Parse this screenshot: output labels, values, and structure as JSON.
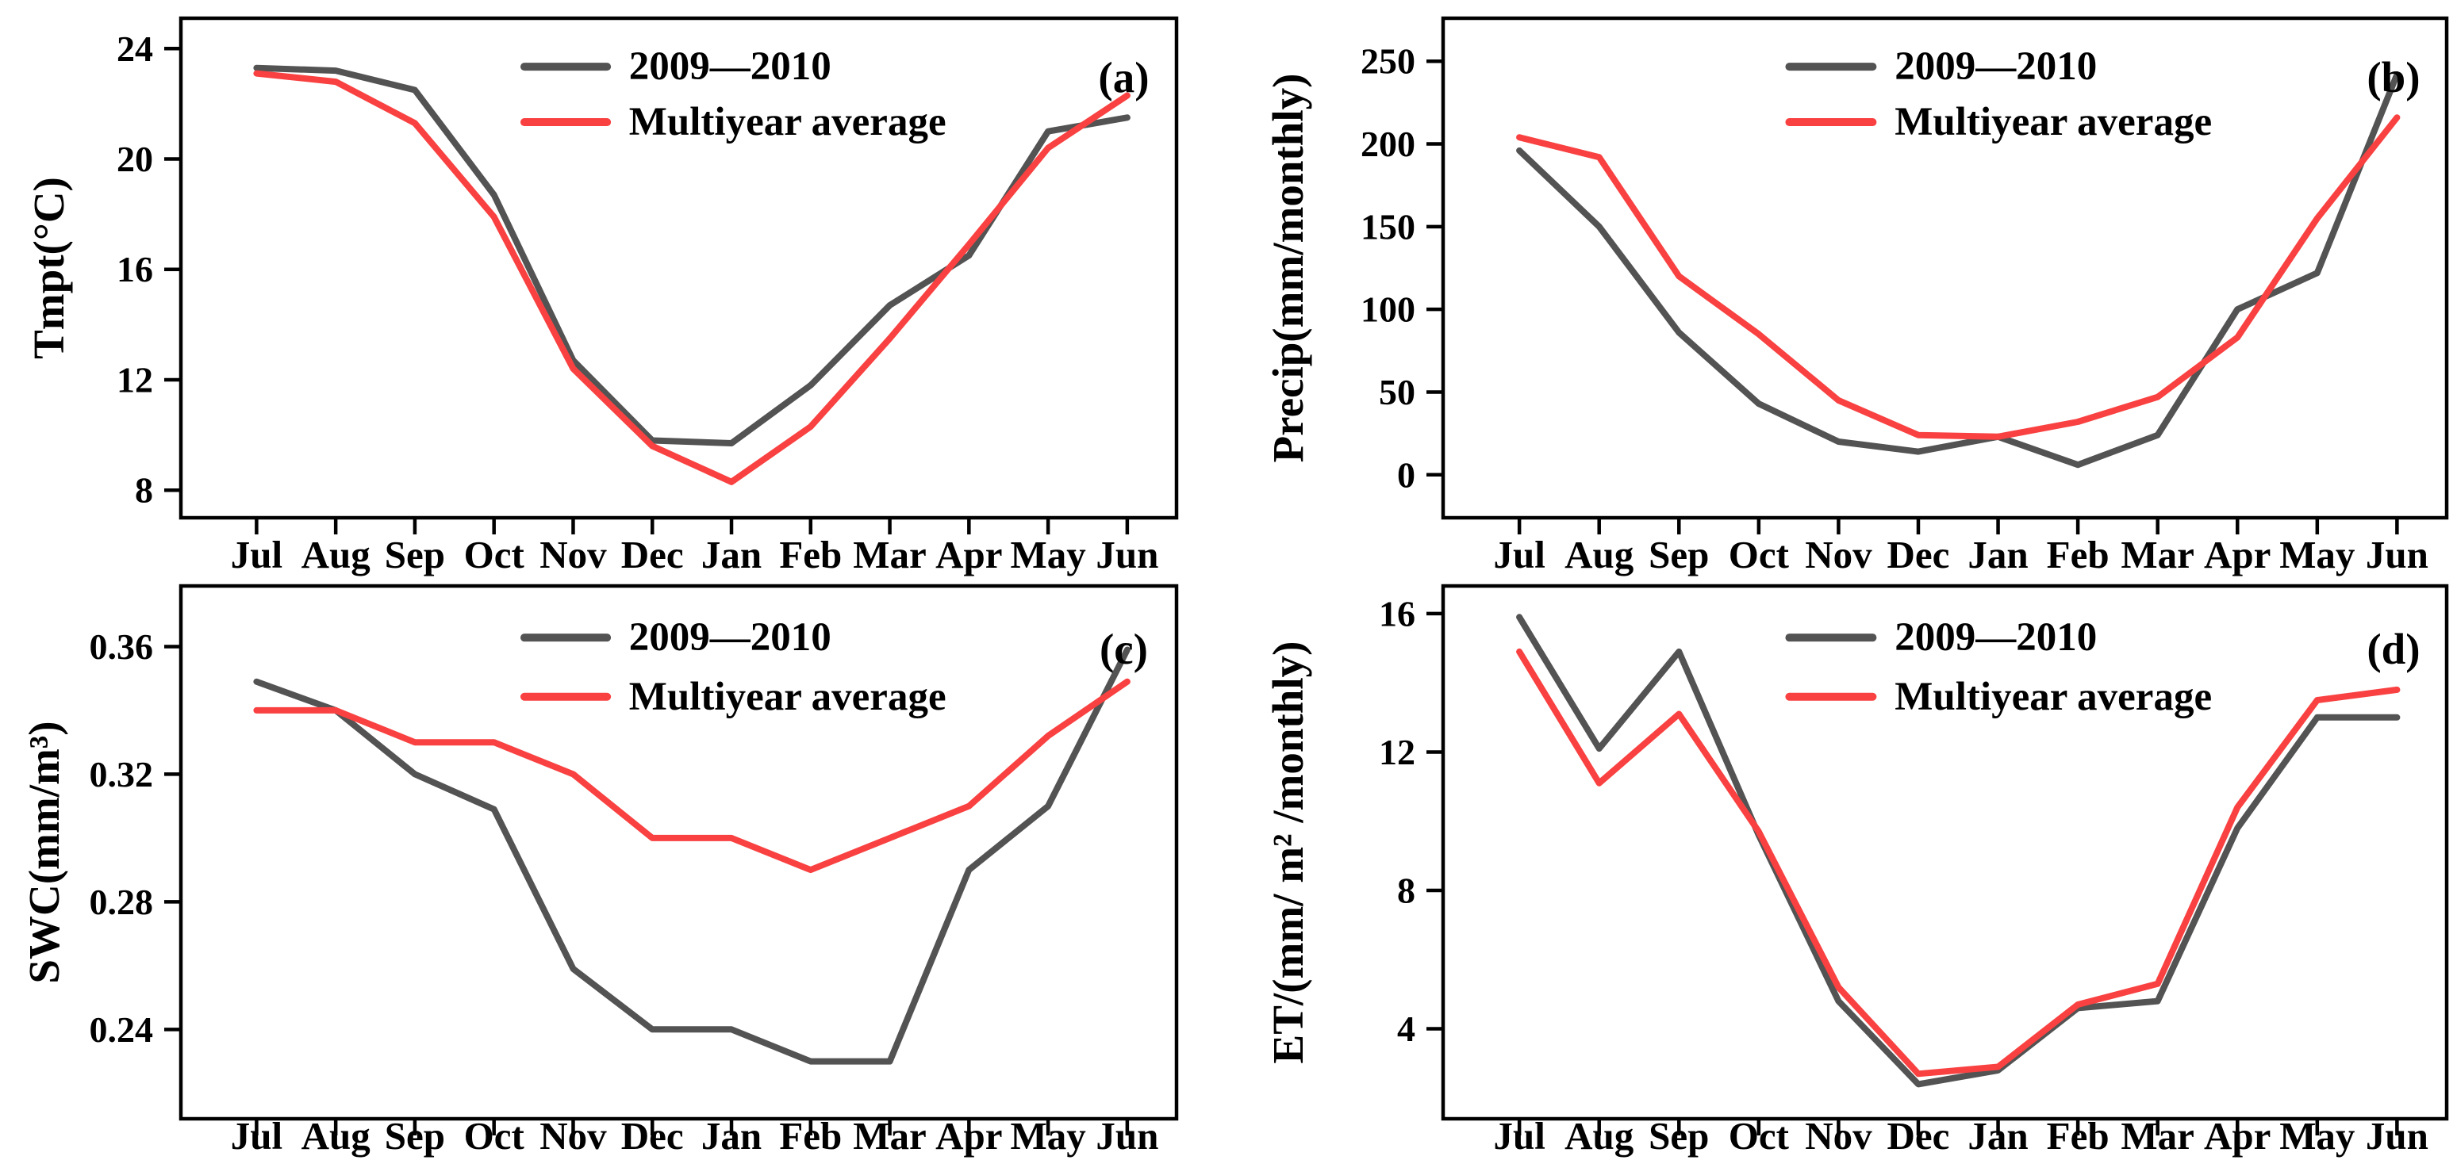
{
  "figure": {
    "background": "#ffffff",
    "axis_color": "#000000",
    "months": [
      "Jul",
      "Aug",
      "Sep",
      "Oct",
      "Nov",
      "Dec",
      "Jan",
      "Feb",
      "Mar",
      "Apr",
      "May",
      "Jun"
    ],
    "legend": {
      "series1_label": "2009—2010",
      "series2_label": "Multiyear average",
      "series1_color": "#535353",
      "series2_color": "#f94141"
    }
  },
  "chart_data": [
    {
      "id": "a",
      "type": "line",
      "panel_label": "(a)",
      "ylabel": "Tmpt(°C)",
      "xlabel": "",
      "categories": [
        "Jul",
        "Aug",
        "Sep",
        "Oct",
        "Nov",
        "Dec",
        "Jan",
        "Feb",
        "Mar",
        "Apr",
        "May",
        "Jun"
      ],
      "yticks": [
        "8",
        "12",
        "16",
        "20",
        "24"
      ],
      "ytick_values": [
        8,
        12,
        16,
        20,
        24
      ],
      "ylim": [
        7.0,
        25.1
      ],
      "grid": false,
      "legend_position": "top-center-inside",
      "series": [
        {
          "name": "2009—2010",
          "color": "#535353",
          "values": [
            23.3,
            23.2,
            22.5,
            18.7,
            12.7,
            9.8,
            9.7,
            11.8,
            14.7,
            16.5,
            21.0,
            21.5
          ]
        },
        {
          "name": "Multiyear average",
          "color": "#f94141",
          "values": [
            23.1,
            22.8,
            21.3,
            17.9,
            12.4,
            9.6,
            8.3,
            10.3,
            13.5,
            16.9,
            20.4,
            22.3
          ]
        }
      ]
    },
    {
      "id": "b",
      "type": "line",
      "panel_label": "(b)",
      "ylabel": "Precip(mm/monthly)",
      "xlabel": "",
      "categories": [
        "Jul",
        "Aug",
        "Sep",
        "Oct",
        "Nov",
        "Dec",
        "Jan",
        "Feb",
        "Mar",
        "Apr",
        "May",
        "Jun"
      ],
      "yticks": [
        "0",
        "50",
        "100",
        "150",
        "200",
        "250"
      ],
      "ytick_values": [
        0,
        50,
        100,
        150,
        200,
        250
      ],
      "ylim": [
        -26,
        276
      ],
      "grid": false,
      "legend_position": "top-center-inside",
      "series": [
        {
          "name": "2009—2010",
          "color": "#535353",
          "values": [
            196,
            150,
            86,
            43,
            20,
            14,
            23,
            6,
            24,
            100,
            122,
            242
          ]
        },
        {
          "name": "Multiyear average",
          "color": "#f94141",
          "values": [
            204,
            192,
            120,
            85,
            45,
            24,
            23,
            32,
            47,
            83,
            155,
            216
          ]
        }
      ]
    },
    {
      "id": "c",
      "type": "line",
      "panel_label": "(c)",
      "ylabel": "SWC(mm/m³)",
      "xlabel": "",
      "categories": [
        "Jul",
        "Aug",
        "Sep",
        "Oct",
        "Nov",
        "Dec",
        "Jan",
        "Feb",
        "Mar",
        "Apr",
        "May",
        "Jun"
      ],
      "yticks": [
        "0.24",
        "0.28",
        "0.32",
        "0.36"
      ],
      "ytick_values": [
        0.24,
        0.28,
        0.32,
        0.36
      ],
      "ylim": [
        0.212,
        0.379
      ],
      "grid": false,
      "legend_position": "top-center-inside",
      "series": [
        {
          "name": "2009—2010",
          "color": "#535353",
          "values": [
            0.349,
            0.34,
            0.32,
            0.309,
            0.259,
            0.24,
            0.24,
            0.23,
            0.23,
            0.29,
            0.31,
            0.359
          ]
        },
        {
          "name": "Multiyear average",
          "color": "#f94141",
          "values": [
            0.34,
            0.34,
            0.33,
            0.33,
            0.32,
            0.3,
            0.3,
            0.29,
            0.3,
            0.31,
            0.332,
            0.349
          ]
        }
      ]
    },
    {
      "id": "d",
      "type": "line",
      "panel_label": "(d)",
      "ylabel": "ET/(mm/ m² /monthly)",
      "xlabel": "",
      "categories": [
        "Jul",
        "Aug",
        "Sep",
        "Oct",
        "Nov",
        "Dec",
        "Jan",
        "Feb",
        "Mar",
        "Apr",
        "May",
        "Jun"
      ],
      "yticks": [
        "4",
        "8",
        "12",
        "16"
      ],
      "ytick_values": [
        4,
        8,
        12,
        16
      ],
      "ylim": [
        1.4,
        16.8
      ],
      "grid": false,
      "legend_position": "top-center-inside",
      "series": [
        {
          "name": "2009—2010",
          "color": "#535353",
          "values": [
            15.9,
            12.1,
            14.9,
            9.6,
            4.8,
            2.4,
            2.8,
            4.6,
            4.8,
            9.8,
            13.0,
            13.0
          ]
        },
        {
          "name": "Multiyear average",
          "color": "#f94141",
          "values": [
            14.9,
            11.1,
            13.1,
            9.7,
            5.2,
            2.7,
            2.9,
            4.7,
            5.3,
            10.4,
            13.5,
            13.8
          ]
        }
      ]
    }
  ]
}
